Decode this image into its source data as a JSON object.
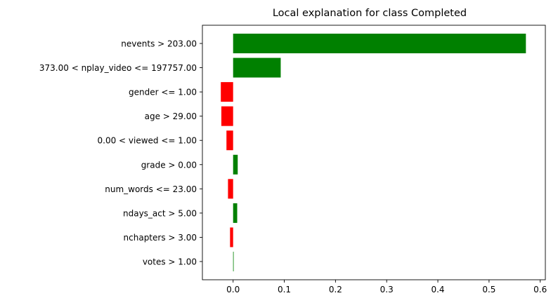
{
  "chart_data": {
    "type": "bar",
    "orientation": "horizontal",
    "title": "Local explanation for class Completed",
    "xlabel": "",
    "ylabel": "",
    "xlim": [
      -0.06,
      0.61
    ],
    "xticks": [
      0.0,
      0.1,
      0.2,
      0.3,
      0.4,
      0.5,
      0.6
    ],
    "xtick_labels": [
      "0.0",
      "0.1",
      "0.2",
      "0.3",
      "0.4",
      "0.5",
      "0.6"
    ],
    "categories": [
      "nevents > 203.00",
      "373.00 < nplay_video <= 197757.00",
      "gender <= 1.00",
      "age > 29.00",
      "0.00 < viewed <= 1.00",
      "grade > 0.00",
      "num_words <= 23.00",
      "ndays_act > 5.00",
      "nchapters > 3.00",
      "votes > 1.00"
    ],
    "values": [
      0.572,
      0.093,
      -0.024,
      -0.023,
      -0.013,
      0.009,
      -0.01,
      0.008,
      -0.006,
      0.001
    ],
    "colors": {
      "positive": "#008000",
      "negative": "#ff0000"
    },
    "grid": false,
    "legend": "none"
  }
}
